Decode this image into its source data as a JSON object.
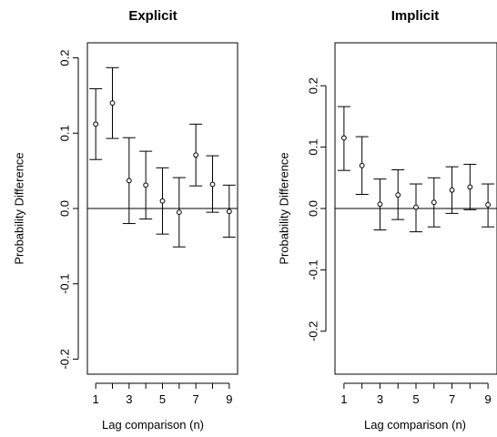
{
  "chart_data": [
    {
      "type": "scatter",
      "title": "Explicit",
      "xlabel": "Lag comparison (n)",
      "ylabel": "Probability Difference",
      "x": [
        1,
        2,
        3,
        4,
        5,
        6,
        7,
        8,
        9
      ],
      "y": [
        0.112,
        0.14,
        0.037,
        0.031,
        0.01,
        -0.005,
        0.071,
        0.032,
        -0.004
      ],
      "lower": [
        0.065,
        0.093,
        -0.02,
        -0.014,
        -0.034,
        -0.051,
        0.03,
        -0.005,
        -0.038
      ],
      "upper": [
        0.159,
        0.187,
        0.094,
        0.076,
        0.054,
        0.041,
        0.112,
        0.07,
        0.031
      ],
      "xlim": [
        0.5,
        9.5
      ],
      "ylim": [
        -0.22,
        0.22
      ],
      "xticks": [
        1,
        3,
        5,
        7,
        9
      ],
      "yticks": [
        -0.2,
        -0.1,
        0.0,
        0.1,
        0.2
      ],
      "xtick_labels": [
        "1",
        "3",
        "5",
        "7",
        "9"
      ],
      "ytick_labels": [
        "-0.2",
        "-0.1",
        "0.0",
        "0.1",
        "0.2"
      ],
      "reference_line": 0,
      "frame": "full box"
    },
    {
      "type": "scatter",
      "title": "Implicit",
      "xlabel": "Lag comparison (n)",
      "ylabel": "Probability Difference",
      "x": [
        1,
        2,
        3,
        4,
        5,
        6,
        7,
        8,
        9
      ],
      "y": [
        0.115,
        0.07,
        0.007,
        0.022,
        0.002,
        0.01,
        0.03,
        0.035,
        0.006
      ],
      "lower": [
        0.062,
        0.023,
        -0.035,
        -0.018,
        -0.038,
        -0.03,
        -0.008,
        -0.002,
        -0.03
      ],
      "upper": [
        0.166,
        0.117,
        0.048,
        0.063,
        0.04,
        0.05,
        0.068,
        0.072,
        0.04
      ],
      "xlim": [
        0.5,
        9.5
      ],
      "ylim": [
        -0.27,
        0.27
      ],
      "xticks": [
        1,
        3,
        5,
        7,
        9
      ],
      "yticks": [
        -0.2,
        -0.1,
        0.0,
        0.1,
        0.2
      ],
      "xtick_labels": [
        "1",
        "3",
        "5",
        "7",
        "9"
      ],
      "ytick_labels": [
        "-0.2",
        "-0.1",
        "0.0",
        "0.1",
        "0.2"
      ],
      "reference_line": 0,
      "frame": "full box"
    }
  ]
}
